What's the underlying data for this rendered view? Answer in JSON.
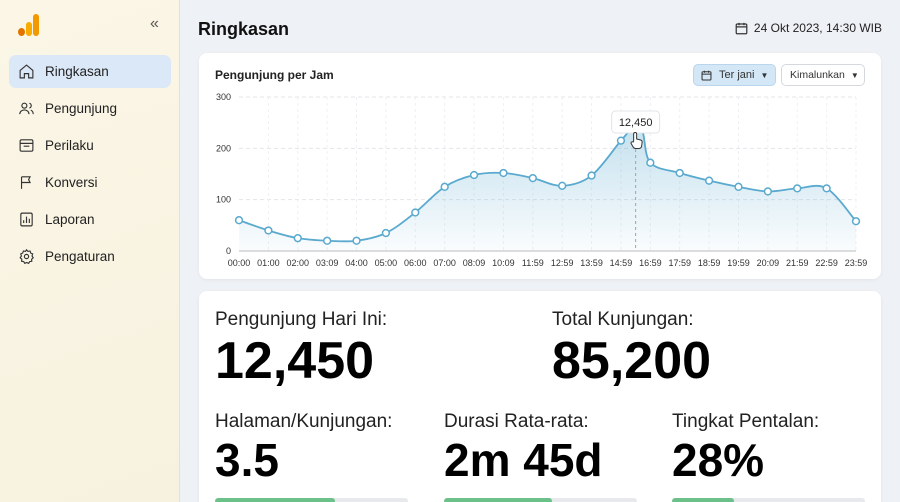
{
  "sidebar": {
    "items": [
      {
        "label": "Ringkasan",
        "icon": "home-icon",
        "active": true
      },
      {
        "label": "Pengunjung",
        "icon": "users-icon"
      },
      {
        "label": "Perilaku",
        "icon": "browser-icon"
      },
      {
        "label": "Konversi",
        "icon": "flag-icon"
      },
      {
        "label": "Laporan",
        "icon": "report-icon"
      },
      {
        "label": "Pengaturan",
        "icon": "gear-icon"
      }
    ]
  },
  "header": {
    "title": "Ringkasan",
    "datetime": "24 Okt 2023, 14:30 WIB"
  },
  "chart_card": {
    "title": "Pengunjung per Jam",
    "range_button": "Ter jani",
    "aggregate_button": "Kimalunkan"
  },
  "chart_data": {
    "type": "area",
    "title": "Pengunjung per Jam",
    "x": [
      "00:00",
      "01:00",
      "02:00",
      "03:09",
      "04:00",
      "05:00",
      "06:00",
      "07:00",
      "08:09",
      "10:09",
      "11:59",
      "12:59",
      "13:59",
      "14:59",
      "16:59",
      "17:59",
      "18:59",
      "19:59",
      "20:09",
      "21:59",
      "22:59",
      "23:59"
    ],
    "points": [
      {
        "x": "00:00",
        "y": 60
      },
      {
        "x": "01:00",
        "y": 40
      },
      {
        "x": "02:00",
        "y": 25
      },
      {
        "x": "03:09",
        "y": 20
      },
      {
        "x": "04:00",
        "y": 20
      },
      {
        "x": "05:00",
        "y": 35
      },
      {
        "x": "06:00",
        "y": 75
      },
      {
        "x": "07:00",
        "y": 125
      },
      {
        "x": "08:09",
        "y": 148
      },
      {
        "x": "10:09",
        "y": 152
      },
      {
        "x": "11:59",
        "y": 142
      },
      {
        "x": "12:59",
        "y": 127
      },
      {
        "x": "13:59",
        "y": 147
      },
      {
        "x": "14:59",
        "y": 215
      },
      {
        "x": "16:59",
        "y": 172
      },
      {
        "x": "17:59",
        "y": 152
      },
      {
        "x": "18:59",
        "y": 137
      },
      {
        "x": "19:59",
        "y": 125
      },
      {
        "x": "20:09",
        "y": 116
      },
      {
        "x": "21:59",
        "y": 122
      },
      {
        "x": "22:59",
        "y": 122
      },
      {
        "x": "23:59",
        "y": 58
      }
    ],
    "peak": {
      "after": "14:59",
      "y": 235
    },
    "yticks": [
      0,
      100,
      200,
      300
    ],
    "ylim": [
      0,
      300
    ],
    "grid": true,
    "tooltip": "12,450",
    "line_color": "#5aa9cf"
  },
  "stats": {
    "today": {
      "label": "Pengunjung Hari Ini:",
      "value": "12,450"
    },
    "total": {
      "label": "Total Kunjungan:",
      "value": "85,200"
    },
    "pages": {
      "label": "Halaman/Kunjungan:",
      "value": "3.5",
      "progress": 0.62
    },
    "duration": {
      "label": "Durasi Rata-rata:",
      "value": "2m 45d",
      "progress": 0.56
    },
    "bounce": {
      "label": "Tingkat Pentalan:",
      "value": "28%",
      "progress": 0.32
    }
  }
}
